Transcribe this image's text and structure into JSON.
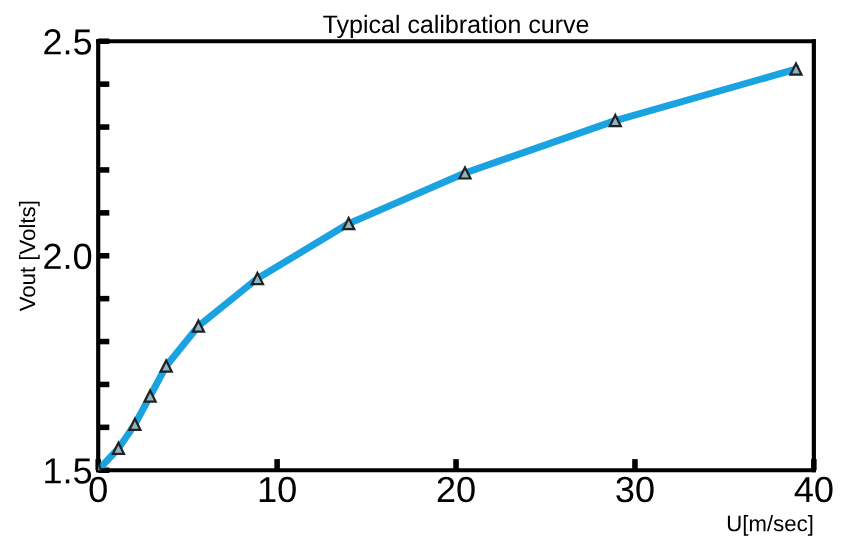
{
  "chart_data": {
    "type": "line",
    "title": "Typical calibration curve",
    "xlabel": "U[m/sec]",
    "ylabel": "Vout [Volts]",
    "x": [
      0,
      1.13,
      2.05,
      2.9,
      3.8,
      5.6,
      8.9,
      14.0,
      20.5,
      28.9,
      39.0
    ],
    "series": [
      {
        "color": "#1aa3e0",
        "values": [
          1.5,
          1.551,
          1.607,
          1.673,
          1.743,
          1.836,
          1.947,
          2.075,
          2.193,
          2.315,
          2.435
        ]
      }
    ],
    "xlim": [
      0,
      40
    ],
    "xticks": [
      0,
      10,
      20,
      30,
      40
    ],
    "ylim": [
      1.5,
      2.5
    ],
    "yticks": [
      1.5,
      {
        "value": 1.6,
        "label": null
      },
      {
        "value": 1.7,
        "label": null
      },
      {
        "value": 1.8,
        "label": null
      },
      {
        "value": 1.9,
        "label": null
      },
      {
        "value": 2.0,
        "label": "2.0"
      },
      {
        "value": 2.1,
        "label": null
      },
      {
        "value": 2.2,
        "label": null
      },
      {
        "value": 2.3,
        "label": null
      },
      {
        "value": 2.4,
        "label": null
      },
      2.5
    ],
    "marker": "triangle",
    "line_style": "solid",
    "grid": false,
    "legend": false
  }
}
